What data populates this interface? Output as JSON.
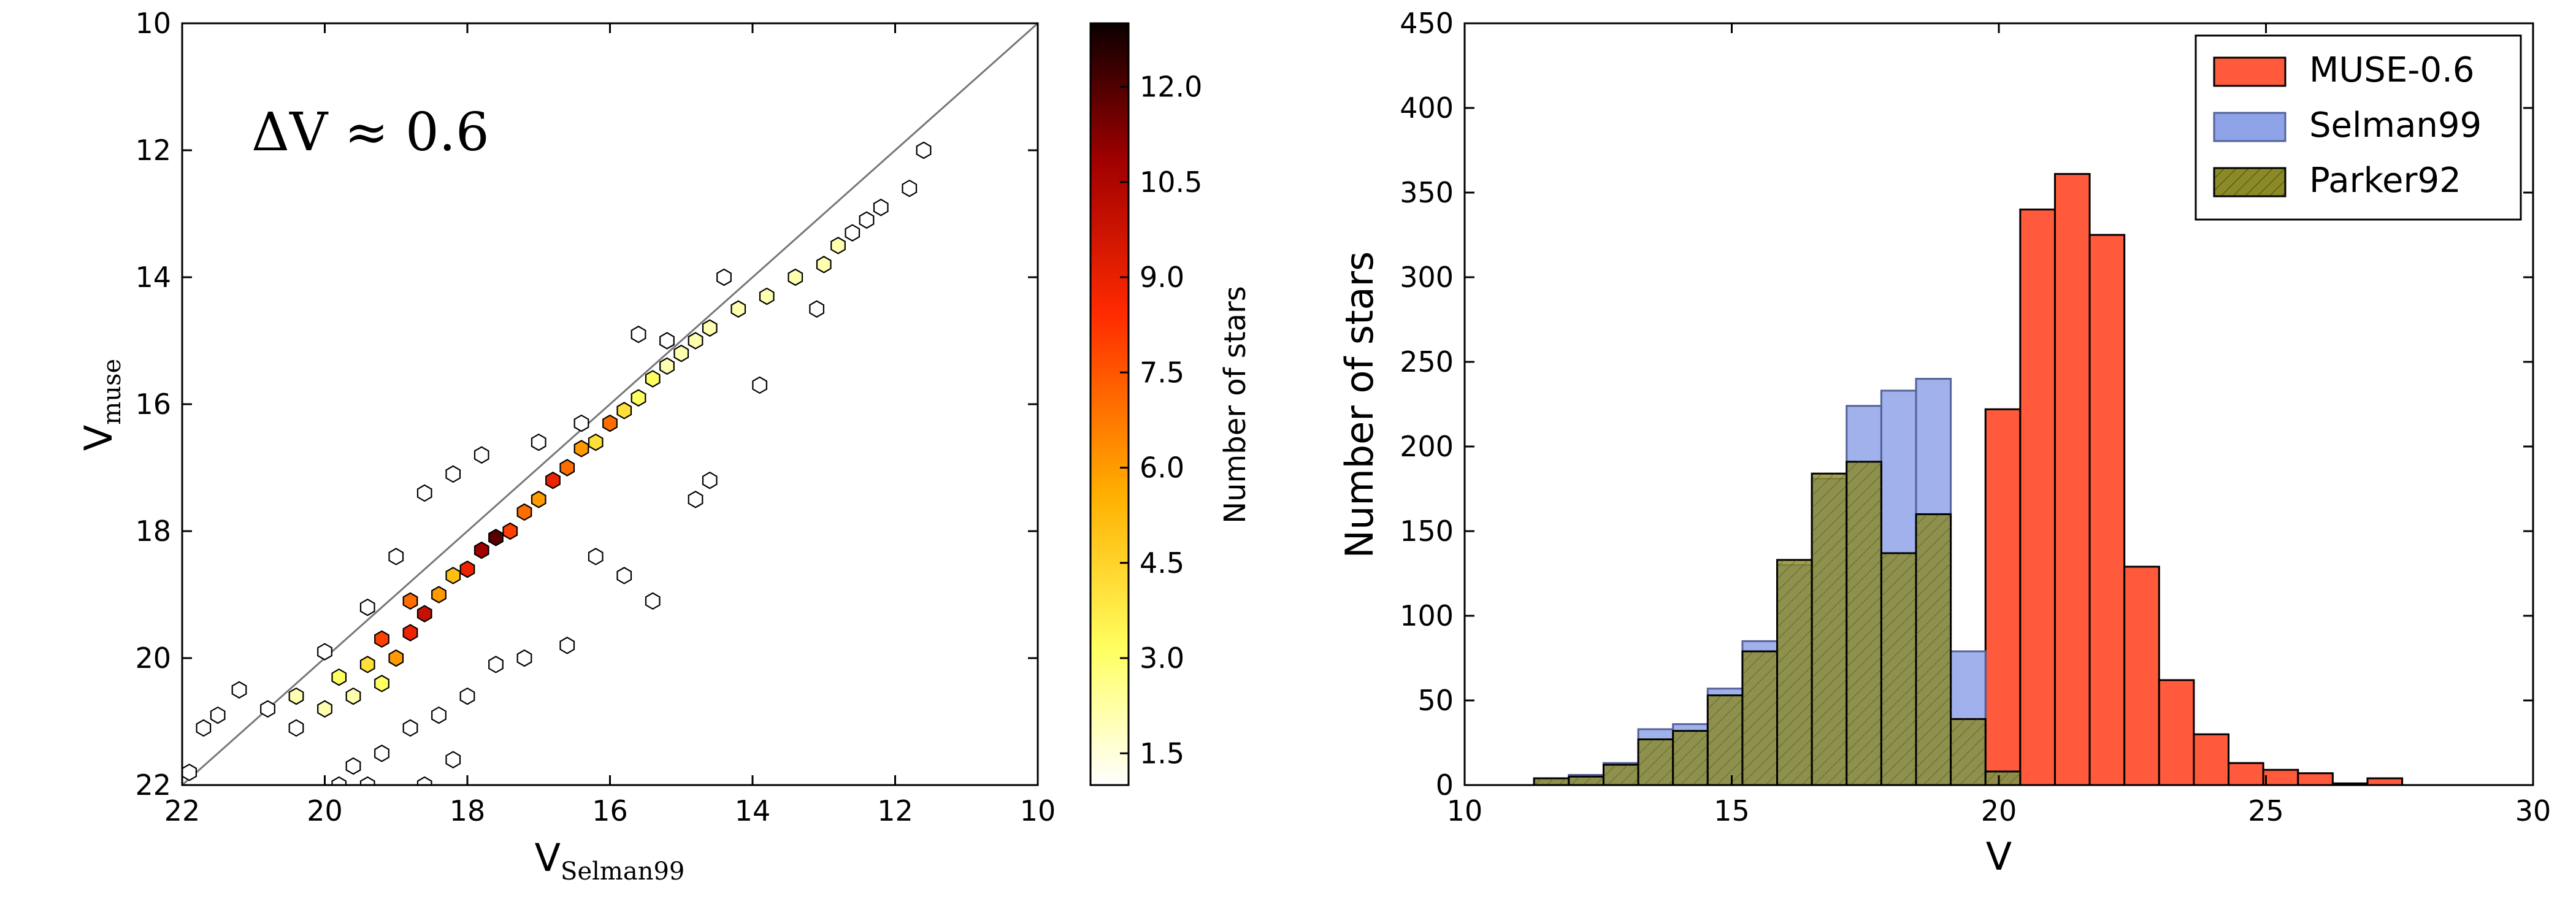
{
  "chart_data": [
    {
      "type": "hexbin",
      "annotation": "ΔV ≈ 0.6",
      "xlabel": "V",
      "xlabel_sub": "Selman99",
      "ylabel": "V",
      "ylabel_sub": "muse",
      "xlim": [
        22,
        10
      ],
      "ylim": [
        22,
        10
      ],
      "x_inverted": true,
      "y_inverted": true,
      "xticks": [
        "22",
        "20",
        "18",
        "16",
        "14",
        "12",
        "10"
      ],
      "yticks": [
        "10",
        "12",
        "14",
        "16",
        "18",
        "20",
        "22"
      ],
      "identity_line": true,
      "colorbar": {
        "label": "Number of stars",
        "range": [
          1,
          13
        ],
        "ticks": [
          "1.5",
          "3.0",
          "4.5",
          "6.0",
          "7.5",
          "9.0",
          "10.5",
          "12.0"
        ],
        "colormap": "hot_r"
      },
      "trend": {
        "description_points": [
          [
            20.3,
            21.0
          ],
          [
            11.6,
            12.0
          ]
        ]
      },
      "cells": [
        {
          "x": 21.9,
          "y": 21.8,
          "c": 1
        },
        {
          "x": 21.7,
          "y": 21.1,
          "c": 1
        },
        {
          "x": 21.5,
          "y": 20.9,
          "c": 1
        },
        {
          "x": 21.2,
          "y": 20.5,
          "c": 1
        },
        {
          "x": 20.8,
          "y": 20.8,
          "c": 1
        },
        {
          "x": 20.4,
          "y": 21.1,
          "c": 1
        },
        {
          "x": 19.8,
          "y": 22.0,
          "c": 1
        },
        {
          "x": 19.6,
          "y": 21.7,
          "c": 1
        },
        {
          "x": 19.4,
          "y": 22.0,
          "c": 1
        },
        {
          "x": 19.2,
          "y": 21.5,
          "c": 1
        },
        {
          "x": 18.6,
          "y": 22.0,
          "c": 1
        },
        {
          "x": 18.2,
          "y": 21.6,
          "c": 1
        },
        {
          "x": 18.8,
          "y": 21.1,
          "c": 1
        },
        {
          "x": 18.4,
          "y": 20.9,
          "c": 1
        },
        {
          "x": 18.0,
          "y": 20.6,
          "c": 1
        },
        {
          "x": 17.6,
          "y": 20.1,
          "c": 1
        },
        {
          "x": 17.2,
          "y": 20.0,
          "c": 1
        },
        {
          "x": 16.6,
          "y": 19.8,
          "c": 1
        },
        {
          "x": 15.4,
          "y": 19.1,
          "c": 1
        },
        {
          "x": 15.8,
          "y": 18.7,
          "c": 1
        },
        {
          "x": 16.2,
          "y": 18.4,
          "c": 1
        },
        {
          "x": 14.8,
          "y": 17.5,
          "c": 1
        },
        {
          "x": 14.6,
          "y": 17.2,
          "c": 1
        },
        {
          "x": 13.9,
          "y": 15.7,
          "c": 1
        },
        {
          "x": 14.4,
          "y": 14.0,
          "c": 1
        },
        {
          "x": 13.1,
          "y": 14.5,
          "c": 1
        },
        {
          "x": 15.2,
          "y": 15.0,
          "c": 1
        },
        {
          "x": 15.6,
          "y": 14.9,
          "c": 1
        },
        {
          "x": 16.4,
          "y": 16.3,
          "c": 1
        },
        {
          "x": 17.0,
          "y": 16.6,
          "c": 1
        },
        {
          "x": 17.8,
          "y": 16.8,
          "c": 1
        },
        {
          "x": 18.2,
          "y": 17.1,
          "c": 1
        },
        {
          "x": 18.6,
          "y": 17.4,
          "c": 1
        },
        {
          "x": 19.0,
          "y": 18.4,
          "c": 1
        },
        {
          "x": 19.4,
          "y": 19.2,
          "c": 1
        },
        {
          "x": 20.0,
          "y": 19.9,
          "c": 1
        },
        {
          "x": 20.4,
          "y": 20.6,
          "c": 2
        },
        {
          "x": 20.0,
          "y": 20.8,
          "c": 2
        },
        {
          "x": 19.6,
          "y": 20.6,
          "c": 2
        },
        {
          "x": 19.8,
          "y": 20.3,
          "c": 3
        },
        {
          "x": 19.4,
          "y": 20.1,
          "c": 4
        },
        {
          "x": 19.2,
          "y": 20.4,
          "c": 3
        },
        {
          "x": 19.0,
          "y": 20.0,
          "c": 6
        },
        {
          "x": 19.2,
          "y": 19.7,
          "c": 8
        },
        {
          "x": 18.8,
          "y": 19.6,
          "c": 9
        },
        {
          "x": 18.6,
          "y": 19.3,
          "c": 10
        },
        {
          "x": 18.8,
          "y": 19.1,
          "c": 7
        },
        {
          "x": 18.4,
          "y": 19.0,
          "c": 6
        },
        {
          "x": 18.2,
          "y": 18.7,
          "c": 5
        },
        {
          "x": 18.0,
          "y": 18.6,
          "c": 9
        },
        {
          "x": 17.8,
          "y": 18.3,
          "c": 11
        },
        {
          "x": 17.6,
          "y": 18.1,
          "c": 12
        },
        {
          "x": 17.4,
          "y": 18.0,
          "c": 8
        },
        {
          "x": 17.2,
          "y": 17.7,
          "c": 7
        },
        {
          "x": 17.0,
          "y": 17.5,
          "c": 6
        },
        {
          "x": 16.8,
          "y": 17.2,
          "c": 9
        },
        {
          "x": 16.6,
          "y": 17.0,
          "c": 7
        },
        {
          "x": 16.4,
          "y": 16.7,
          "c": 6
        },
        {
          "x": 16.2,
          "y": 16.6,
          "c": 4
        },
        {
          "x": 16.0,
          "y": 16.3,
          "c": 7
        },
        {
          "x": 15.8,
          "y": 16.1,
          "c": 4
        },
        {
          "x": 15.6,
          "y": 15.9,
          "c": 3
        },
        {
          "x": 15.4,
          "y": 15.6,
          "c": 3
        },
        {
          "x": 15.2,
          "y": 15.4,
          "c": 2
        },
        {
          "x": 15.0,
          "y": 15.2,
          "c": 2
        },
        {
          "x": 14.8,
          "y": 15.0,
          "c": 2
        },
        {
          "x": 14.6,
          "y": 14.8,
          "c": 2
        },
        {
          "x": 14.2,
          "y": 14.5,
          "c": 2
        },
        {
          "x": 13.8,
          "y": 14.3,
          "c": 2
        },
        {
          "x": 13.4,
          "y": 14.0,
          "c": 2
        },
        {
          "x": 13.0,
          "y": 13.8,
          "c": 2
        },
        {
          "x": 12.8,
          "y": 13.5,
          "c": 2
        },
        {
          "x": 12.6,
          "y": 13.3,
          "c": 1
        },
        {
          "x": 12.4,
          "y": 13.1,
          "c": 1
        },
        {
          "x": 12.2,
          "y": 12.9,
          "c": 1
        },
        {
          "x": 11.8,
          "y": 12.6,
          "c": 1
        },
        {
          "x": 11.6,
          "y": 12.0,
          "c": 1
        }
      ]
    },
    {
      "type": "histogram",
      "xlabel": "V",
      "ylabel": "Number of stars",
      "xlim": [
        10,
        30
      ],
      "ylim": [
        0,
        450
      ],
      "xticks": [
        "10",
        "15",
        "20",
        "25",
        "30"
      ],
      "yticks": [
        "0",
        "50",
        "100",
        "150",
        "200",
        "250",
        "300",
        "350",
        "400",
        "450"
      ],
      "bin_width": 0.65,
      "bin_edges": [
        11.3,
        11.95,
        12.6,
        13.25,
        13.9,
        14.55,
        15.2,
        15.85,
        16.5,
        17.15,
        17.8,
        18.45,
        19.1,
        19.75,
        20.4,
        21.05,
        21.7,
        22.35,
        23.0,
        23.65,
        24.3,
        24.95,
        25.6,
        26.25,
        26.9,
        27.55
      ],
      "legend_position": "top-right",
      "series": [
        {
          "name": "MUSE-0.6",
          "color": "#ff5a3c",
          "values": [
            0,
            0,
            0,
            0,
            0,
            0,
            0,
            0,
            0,
            0,
            0,
            0,
            0,
            222,
            340,
            361,
            325,
            129,
            62,
            30,
            13,
            9,
            7,
            1,
            4
          ]
        },
        {
          "name": "Selman99",
          "color": "#8fa3e8",
          "values": [
            4,
            6,
            13,
            33,
            36,
            57,
            85,
            130,
            181,
            224,
            233,
            240,
            79,
            8,
            0,
            0,
            0,
            0,
            0,
            0,
            0,
            0,
            0,
            0,
            0
          ]
        },
        {
          "name": "Parker92",
          "color": "#8a8a26",
          "values": [
            4,
            5,
            12,
            27,
            32,
            53,
            79,
            133,
            184,
            191,
            137,
            160,
            39,
            8,
            0,
            0,
            0,
            0,
            0,
            0,
            0,
            0,
            0,
            0,
            0
          ]
        }
      ]
    }
  ]
}
